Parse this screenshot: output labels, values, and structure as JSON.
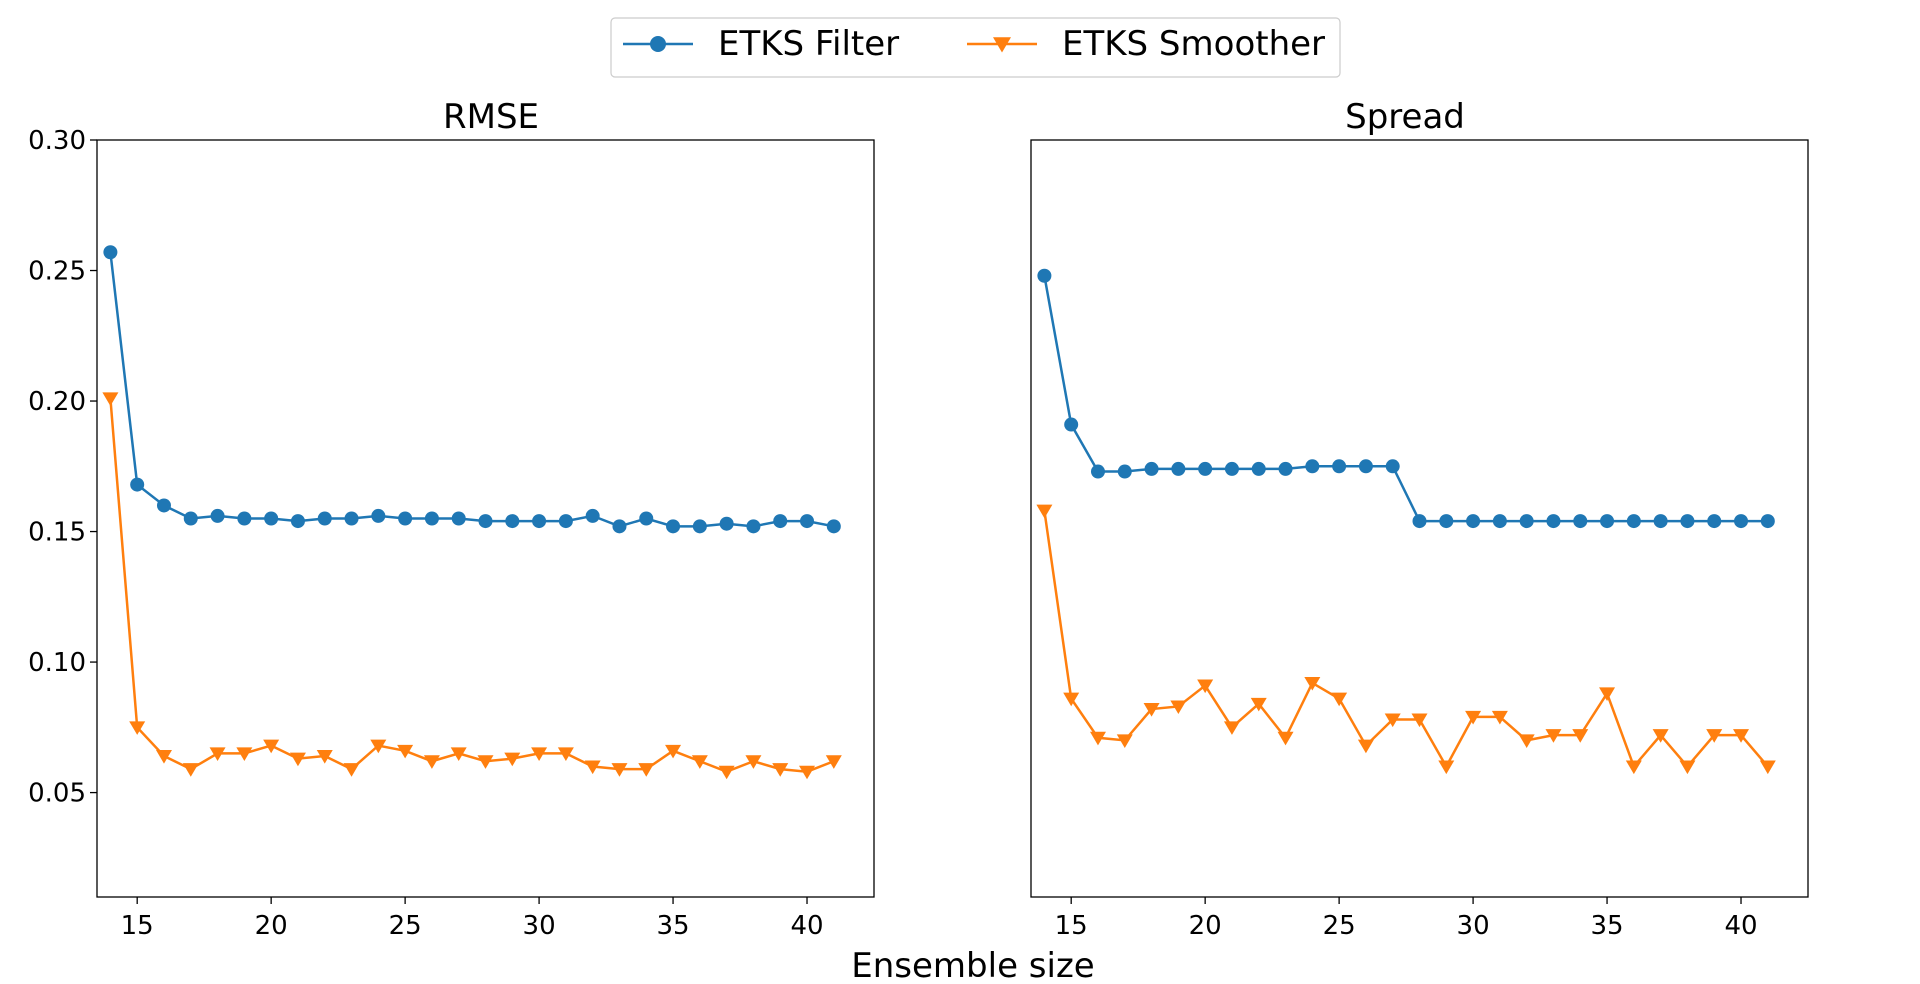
{
  "figure": {
    "xlabel": "Ensemble size",
    "colors": {
      "filter": "#1f77b4",
      "smoother": "#ff7f0e",
      "axes": "#000000"
    },
    "legend": {
      "placement": "top-center",
      "entries": [
        {
          "label": "ETKS Filter",
          "marker": "circle",
          "color": "#1f77b4"
        },
        {
          "label": "ETKS Smoother",
          "marker": "triangle-down",
          "color": "#ff7f0e"
        }
      ]
    }
  },
  "chart_data": [
    {
      "type": "line",
      "title": "RMSE",
      "xlabel": "",
      "ylabel": "",
      "xlim": [
        13.5,
        42.5
      ],
      "ylim": [
        0.01,
        0.3
      ],
      "xticks": [
        15,
        20,
        25,
        30,
        35,
        40
      ],
      "xtick_labels": [
        "15",
        "20",
        "25",
        "30",
        "35",
        "40"
      ],
      "yticks": [
        0.05,
        0.1,
        0.15,
        0.2,
        0.25,
        0.3
      ],
      "ytick_labels": [
        "0.05",
        "0.10",
        "0.15",
        "0.20",
        "0.25",
        "0.30"
      ],
      "grid": false,
      "x": [
        14,
        15,
        16,
        17,
        18,
        19,
        20,
        21,
        22,
        23,
        24,
        25,
        26,
        27,
        28,
        29,
        30,
        31,
        32,
        33,
        34,
        35,
        36,
        37,
        38,
        39,
        40,
        41
      ],
      "series": [
        {
          "name": "ETKS Filter",
          "marker": "circle",
          "color": "#1f77b4",
          "values": [
            0.257,
            0.168,
            0.16,
            0.155,
            0.156,
            0.155,
            0.155,
            0.154,
            0.155,
            0.155,
            0.156,
            0.155,
            0.155,
            0.155,
            0.154,
            0.154,
            0.154,
            0.154,
            0.156,
            0.152,
            0.155,
            0.152,
            0.152,
            0.153,
            0.152,
            0.154,
            0.154,
            0.152
          ]
        },
        {
          "name": "ETKS Smoother",
          "marker": "triangle-down",
          "color": "#ff7f0e",
          "values": [
            0.201,
            0.075,
            0.064,
            0.059,
            0.065,
            0.065,
            0.068,
            0.063,
            0.064,
            0.059,
            0.068,
            0.066,
            0.062,
            0.065,
            0.062,
            0.063,
            0.065,
            0.065,
            0.06,
            0.059,
            0.059,
            0.066,
            0.062,
            0.058,
            0.062,
            0.059,
            0.058,
            0.062
          ]
        }
      ]
    },
    {
      "type": "line",
      "title": "Spread",
      "xlabel": "",
      "ylabel": "",
      "xlim": [
        13.5,
        42.5
      ],
      "ylim": [
        0.01,
        0.3
      ],
      "xticks": [
        15,
        20,
        25,
        30,
        35,
        40
      ],
      "xtick_labels": [
        "15",
        "20",
        "25",
        "30",
        "35",
        "40"
      ],
      "yticks": [],
      "ytick_labels": [],
      "grid": false,
      "x": [
        14,
        15,
        16,
        17,
        18,
        19,
        20,
        21,
        22,
        23,
        24,
        25,
        26,
        27,
        28,
        29,
        30,
        31,
        32,
        33,
        34,
        35,
        36,
        37,
        38,
        39,
        40,
        41
      ],
      "series": [
        {
          "name": "ETKS Filter",
          "marker": "circle",
          "color": "#1f77b4",
          "values": [
            0.248,
            0.191,
            0.173,
            0.173,
            0.174,
            0.174,
            0.174,
            0.174,
            0.174,
            0.174,
            0.175,
            0.175,
            0.175,
            0.175,
            0.154,
            0.154,
            0.154,
            0.154,
            0.154,
            0.154,
            0.154,
            0.154,
            0.154,
            0.154,
            0.154,
            0.154,
            0.154,
            0.154
          ]
        },
        {
          "name": "ETKS Smoother",
          "marker": "triangle-down",
          "color": "#ff7f0e",
          "values": [
            0.158,
            0.086,
            0.071,
            0.07,
            0.082,
            0.083,
            0.091,
            0.075,
            0.084,
            0.071,
            0.092,
            0.086,
            0.068,
            0.078,
            0.078,
            0.06,
            0.079,
            0.079,
            0.07,
            0.072,
            0.072,
            0.088,
            0.06,
            0.072,
            0.06,
            0.072,
            0.072,
            0.06
          ]
        }
      ]
    }
  ]
}
